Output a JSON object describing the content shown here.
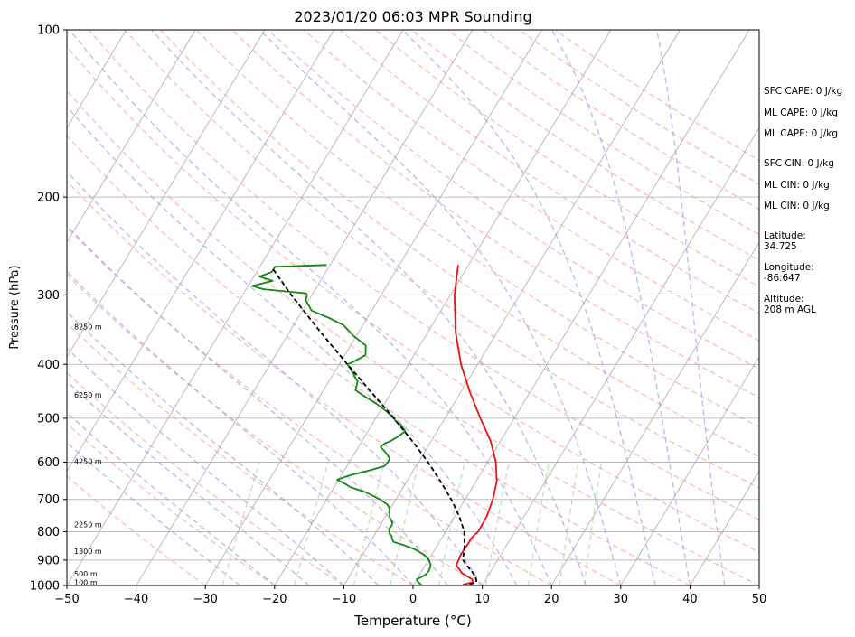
{
  "chart_data": {
    "type": "line",
    "title": "2023/01/20 06:03 MPR Sounding",
    "xlabel": "Temperature (°C)",
    "ylabel": "Pressure (hPa)",
    "xlim": [
      -50,
      50
    ],
    "ylim": [
      1000,
      100
    ],
    "y_scale": "log",
    "skew": true,
    "grid": true,
    "x_ticks": [
      "−50",
      "−40",
      "−30",
      "−20",
      "−10",
      "0",
      "10",
      "20",
      "30",
      "40",
      "50"
    ],
    "y_ticks": [
      "100",
      "200",
      "300",
      "400",
      "500",
      "600",
      "700",
      "800",
      "900",
      "1000"
    ],
    "series": [
      {
        "color": "#ee1111",
        "style": "solid",
        "points": [
          [
            265,
            -21.5
          ],
          [
            300,
            -19.4
          ],
          [
            350,
            -16.0
          ],
          [
            400,
            -12.4
          ],
          [
            450,
            -8.6
          ],
          [
            500,
            -4.9
          ],
          [
            550,
            -1.4
          ],
          [
            600,
            1.2
          ],
          [
            650,
            3.0
          ],
          [
            700,
            4.0
          ],
          [
            750,
            4.6
          ],
          [
            800,
            4.7
          ],
          [
            820,
            4.3
          ],
          [
            840,
            4.3
          ],
          [
            880,
            4.2
          ],
          [
            920,
            4.5
          ],
          [
            950,
            6.0
          ],
          [
            975,
            8.0
          ],
          [
            985,
            8.4
          ],
          [
            990,
            8.0
          ],
          [
            995,
            7.2
          ],
          [
            1000,
            7.4
          ]
        ]
      },
      {
        "color": "#118811",
        "style": "solid",
        "points": [
          [
            265,
            -40.5
          ],
          [
            267,
            -47.8
          ],
          [
            273,
            -47.8
          ],
          [
            278,
            -49.2
          ],
          [
            283,
            -46.9
          ],
          [
            289,
            -49.4
          ],
          [
            293,
            -47.5
          ],
          [
            298,
            -41.0
          ],
          [
            300,
            -40.7
          ],
          [
            307,
            -40.4
          ],
          [
            320,
            -38.7
          ],
          [
            330,
            -35.5
          ],
          [
            340,
            -32.8
          ],
          [
            355,
            -30.5
          ],
          [
            370,
            -27.8
          ],
          [
            385,
            -27.0
          ],
          [
            395,
            -28.1
          ],
          [
            400,
            -28.8
          ],
          [
            412,
            -27.5
          ],
          [
            430,
            -25.8
          ],
          [
            445,
            -25.4
          ],
          [
            455,
            -23.8
          ],
          [
            470,
            -21.3
          ],
          [
            485,
            -19.2
          ],
          [
            500,
            -17.3
          ],
          [
            505,
            -17.0
          ],
          [
            515,
            -15.7
          ],
          [
            528,
            -14.6
          ],
          [
            540,
            -15.2
          ],
          [
            550,
            -15.9
          ],
          [
            555,
            -16.5
          ],
          [
            563,
            -16.8
          ],
          [
            575,
            -15.7
          ],
          [
            590,
            -14.5
          ],
          [
            600,
            -14.4
          ],
          [
            610,
            -14.6
          ],
          [
            620,
            -16.2
          ],
          [
            633,
            -18.7
          ],
          [
            645,
            -20.2
          ],
          [
            657,
            -18.6
          ],
          [
            665,
            -17.7
          ],
          [
            680,
            -14.9
          ],
          [
            700,
            -12.3
          ],
          [
            715,
            -10.8
          ],
          [
            725,
            -10.2
          ],
          [
            738,
            -9.8
          ],
          [
            755,
            -9.3
          ],
          [
            770,
            -8.5
          ],
          [
            780,
            -8.3
          ],
          [
            790,
            -8.4
          ],
          [
            805,
            -8.0
          ],
          [
            815,
            -7.4
          ],
          [
            825,
            -7.1
          ],
          [
            835,
            -6.6
          ],
          [
            845,
            -5.0
          ],
          [
            860,
            -3.0
          ],
          [
            880,
            -1.1
          ],
          [
            900,
            0.1
          ],
          [
            920,
            0.8
          ],
          [
            940,
            1.0
          ],
          [
            955,
            0.9
          ],
          [
            965,
            0.5
          ],
          [
            975,
            0.0
          ],
          [
            985,
            0.4
          ],
          [
            1000,
            1.3
          ]
        ]
      },
      {
        "color": "#000000",
        "style": "dashed",
        "points": [
          [
            270,
            -47.8
          ],
          [
            300,
            -43.0
          ],
          [
            350,
            -35.5
          ],
          [
            400,
            -28.8
          ],
          [
            450,
            -22.8
          ],
          [
            500,
            -17.4
          ],
          [
            550,
            -12.7
          ],
          [
            600,
            -8.6
          ],
          [
            650,
            -5.1
          ],
          [
            700,
            -2.0
          ],
          [
            750,
            0.6
          ],
          [
            800,
            2.7
          ],
          [
            850,
            4.0
          ],
          [
            880,
            4.6
          ],
          [
            900,
            5.0
          ],
          [
            920,
            6.0
          ],
          [
            950,
            7.6
          ],
          [
            975,
            8.6
          ],
          [
            985,
            8.8
          ],
          [
            990,
            8.6
          ],
          [
            1000,
            7.4
          ]
        ]
      }
    ],
    "altitude_markers": [
      {
        "label": "100 m",
        "pressure": 987
      },
      {
        "label": "500 m",
        "pressure": 952
      },
      {
        "label": "1300 m",
        "pressure": 868
      },
      {
        "label": "2250 m",
        "pressure": 776
      },
      {
        "label": "4250 m",
        "pressure": 598
      },
      {
        "label": "6250 m",
        "pressure": 454
      },
      {
        "label": "8250 m",
        "pressure": 342
      }
    ],
    "annotations": [
      "SFC CAPE: 0 J/kg",
      "ML CAPE: 0 J/kg",
      "ML CAPE: 0 J/kg",
      "SFC CIN: 0 J/kg",
      "ML CIN: 0 J/kg",
      "ML CIN: 0 J/kg",
      "Latitude:",
      "34.725",
      "Longitude:",
      "-86.647",
      "Altitude:",
      "208 m AGL"
    ],
    "background_lines": {
      "isotherms_color": "#aaaaaa",
      "dry_adiabats_color": "#ff9999",
      "moist_adiabats_color": "#9999ee",
      "mixing_ratio_color": "#88cc88"
    }
  }
}
